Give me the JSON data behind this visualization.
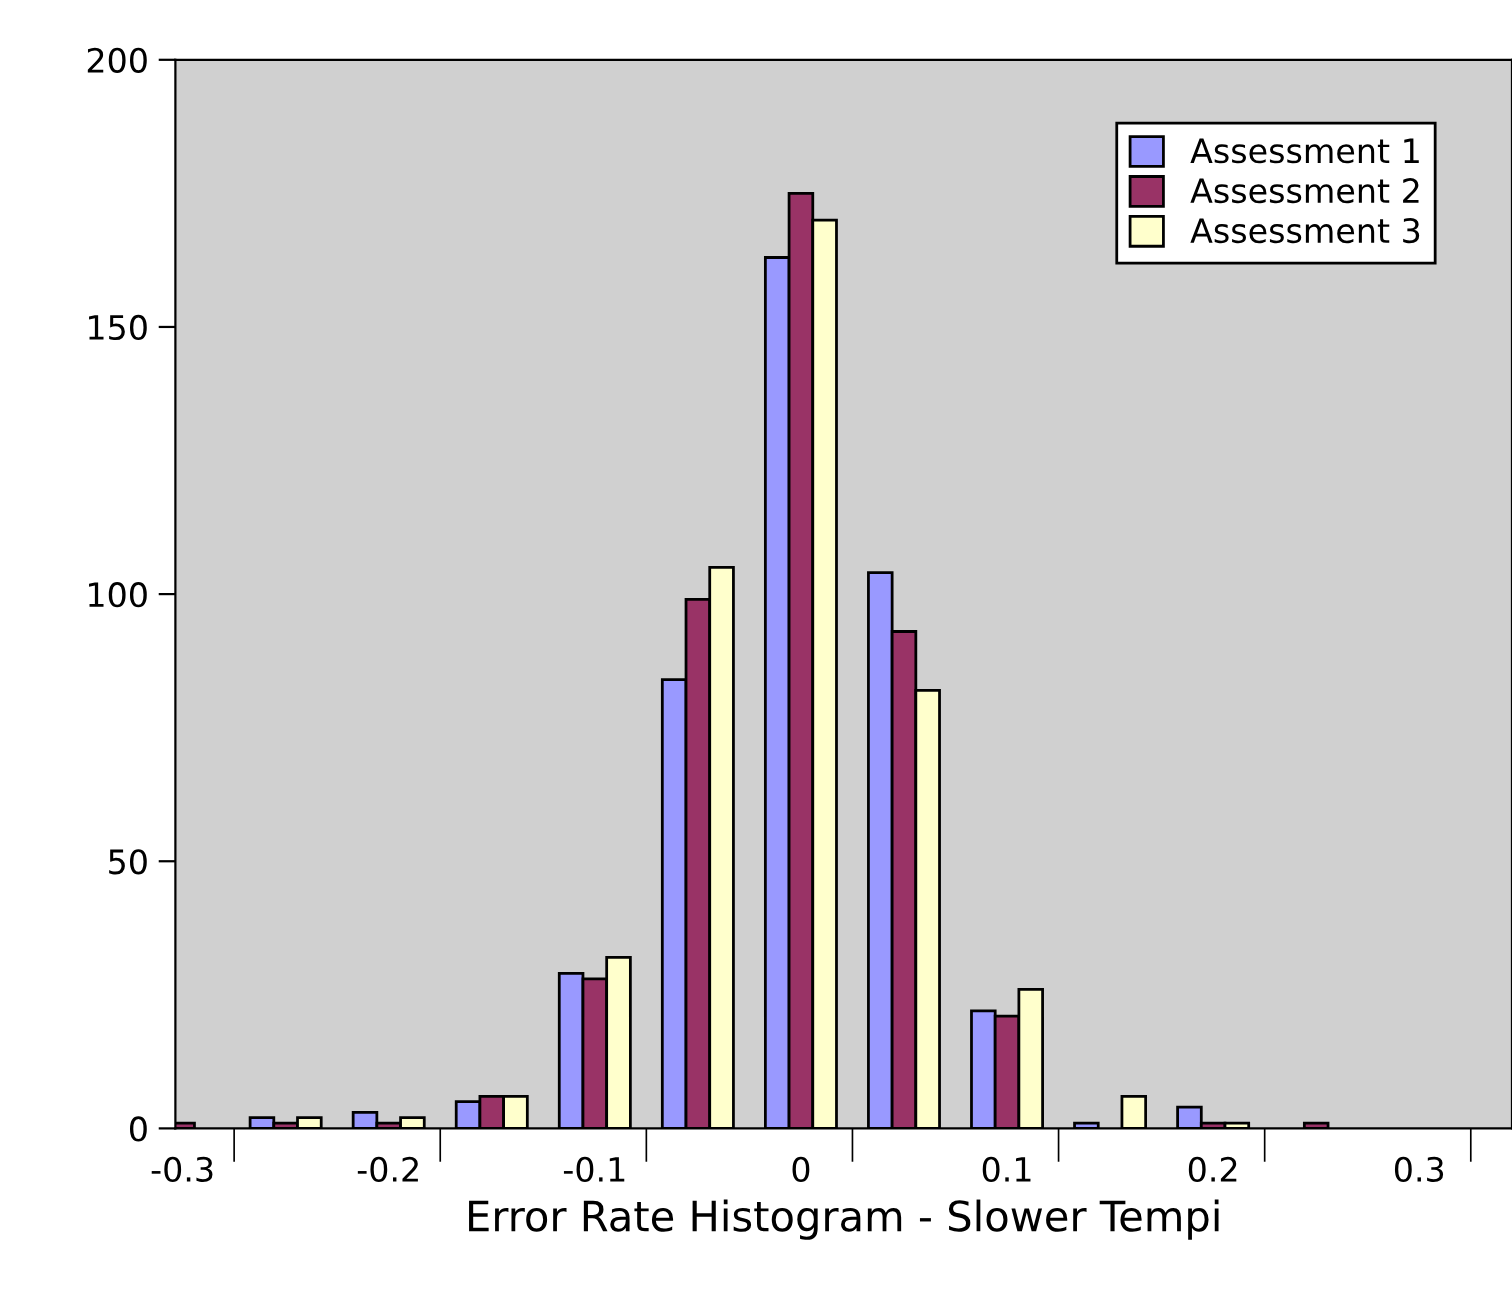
{
  "chart_data": {
    "type": "bar",
    "xlabel": "Error Rate Histogram - Slower Tempi",
    "categories": [
      "-0.3",
      null,
      "-0.2",
      null,
      "-0.1",
      null,
      "0",
      null,
      "0.1",
      null,
      "0.2",
      null,
      "0.3"
    ],
    "series": [
      {
        "name": "Assessment 1",
        "color": "#9999ff",
        "values": [
          null,
          2,
          3,
          5,
          29,
          84,
          163,
          104,
          22,
          1,
          4,
          0,
          0
        ]
      },
      {
        "name": "Assessment 2",
        "color": "#993366",
        "values": [
          1,
          1,
          1,
          6,
          28,
          99,
          175,
          93,
          21,
          0,
          1,
          1,
          0
        ]
      },
      {
        "name": "Assessment 3",
        "color": "#ffffcc",
        "values": [
          0,
          2,
          2,
          6,
          32,
          105,
          170,
          82,
          26,
          6,
          1,
          0,
          0
        ]
      }
    ],
    "ylim": [
      0,
      200
    ],
    "yticks": [
      0,
      50,
      100,
      150,
      200
    ],
    "grid": false,
    "legend": "top right"
  }
}
